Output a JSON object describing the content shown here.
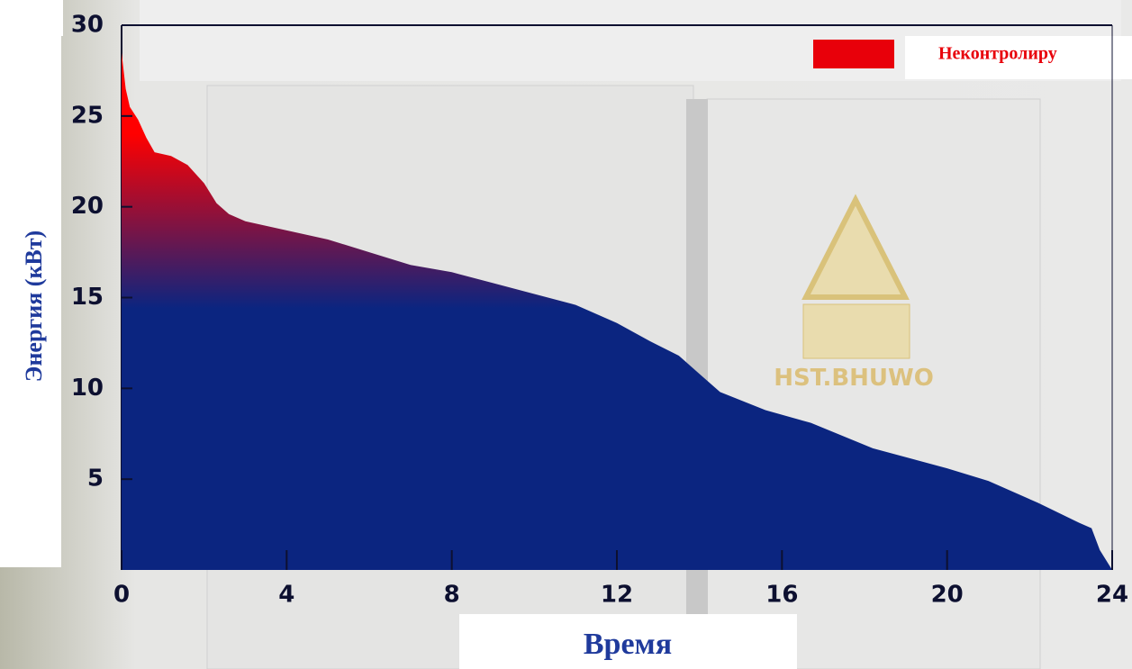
{
  "chart_data": {
    "type": "area",
    "x_label": "Время",
    "y_label": "Энергия (кВт)",
    "x": [
      0,
      0.1,
      0.2,
      0.4,
      0.6,
      0.8,
      1.2,
      1.6,
      2.0,
      2.3,
      2.6,
      3.0,
      4.0,
      5.0,
      6.0,
      7.0,
      8.0,
      9.0,
      10.0,
      11.0,
      12.0,
      12.8,
      13.5,
      14.0,
      14.5,
      15.6,
      16.7,
      18.2,
      20.0,
      21.0,
      22.2,
      23.2,
      23.5,
      23.7,
      24.0
    ],
    "series": [
      {
        "name": "Неконтролиру",
        "color": "#e8000a",
        "gradient": [
          "#ff0000",
          "#0b2580"
        ],
        "values": [
          28.5,
          26.5,
          25.5,
          24.8,
          23.8,
          23.0,
          22.8,
          22.3,
          21.3,
          20.2,
          19.6,
          19.2,
          18.7,
          18.2,
          17.5,
          16.8,
          16.4,
          15.8,
          15.2,
          14.6,
          13.6,
          12.6,
          11.8,
          10.8,
          9.8,
          8.8,
          8.1,
          6.7,
          5.6,
          4.9,
          3.7,
          2.6,
          2.3,
          1.1,
          0
        ]
      }
    ],
    "xlim": [
      0,
      24
    ],
    "xticks": [
      0,
      4,
      8,
      12,
      16,
      20,
      24
    ],
    "ylim": [
      0,
      30
    ],
    "yticks": [
      5,
      10,
      15,
      20,
      25,
      30
    ],
    "legend": "top-right"
  }
}
